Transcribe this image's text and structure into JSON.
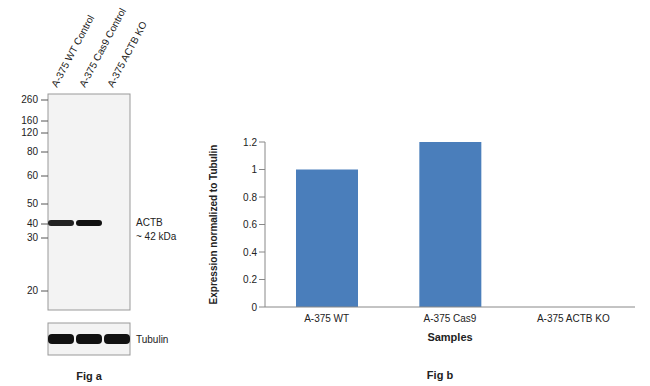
{
  "chart_data": {
    "type": "bar",
    "title": "Fig b",
    "x_label": "Samples",
    "y_label": "Expression  normalized to Tubulin",
    "categories": [
      "A-375 WT",
      "A-375 Cas9",
      "A-375 ACTB KO"
    ],
    "values": [
      1,
      1.2,
      0
    ],
    "color": "#4a7ebb",
    "ylim": [
      0,
      1.2
    ],
    "yticks": [
      0,
      0.2,
      0.4,
      0.6,
      0.8,
      1,
      1.2
    ],
    "grid": false
  },
  "blot": {
    "title": "Fig a",
    "lanes": [
      "A-375 WT Control",
      "A-375 Cas9 Control",
      "A-375 ACTB KO"
    ],
    "markers": [
      260,
      160,
      120,
      80,
      60,
      50,
      40,
      30,
      20
    ],
    "band_label": "ACTB",
    "band_size_label": "~ 42 kDa",
    "loading_control": "Tubulin"
  }
}
